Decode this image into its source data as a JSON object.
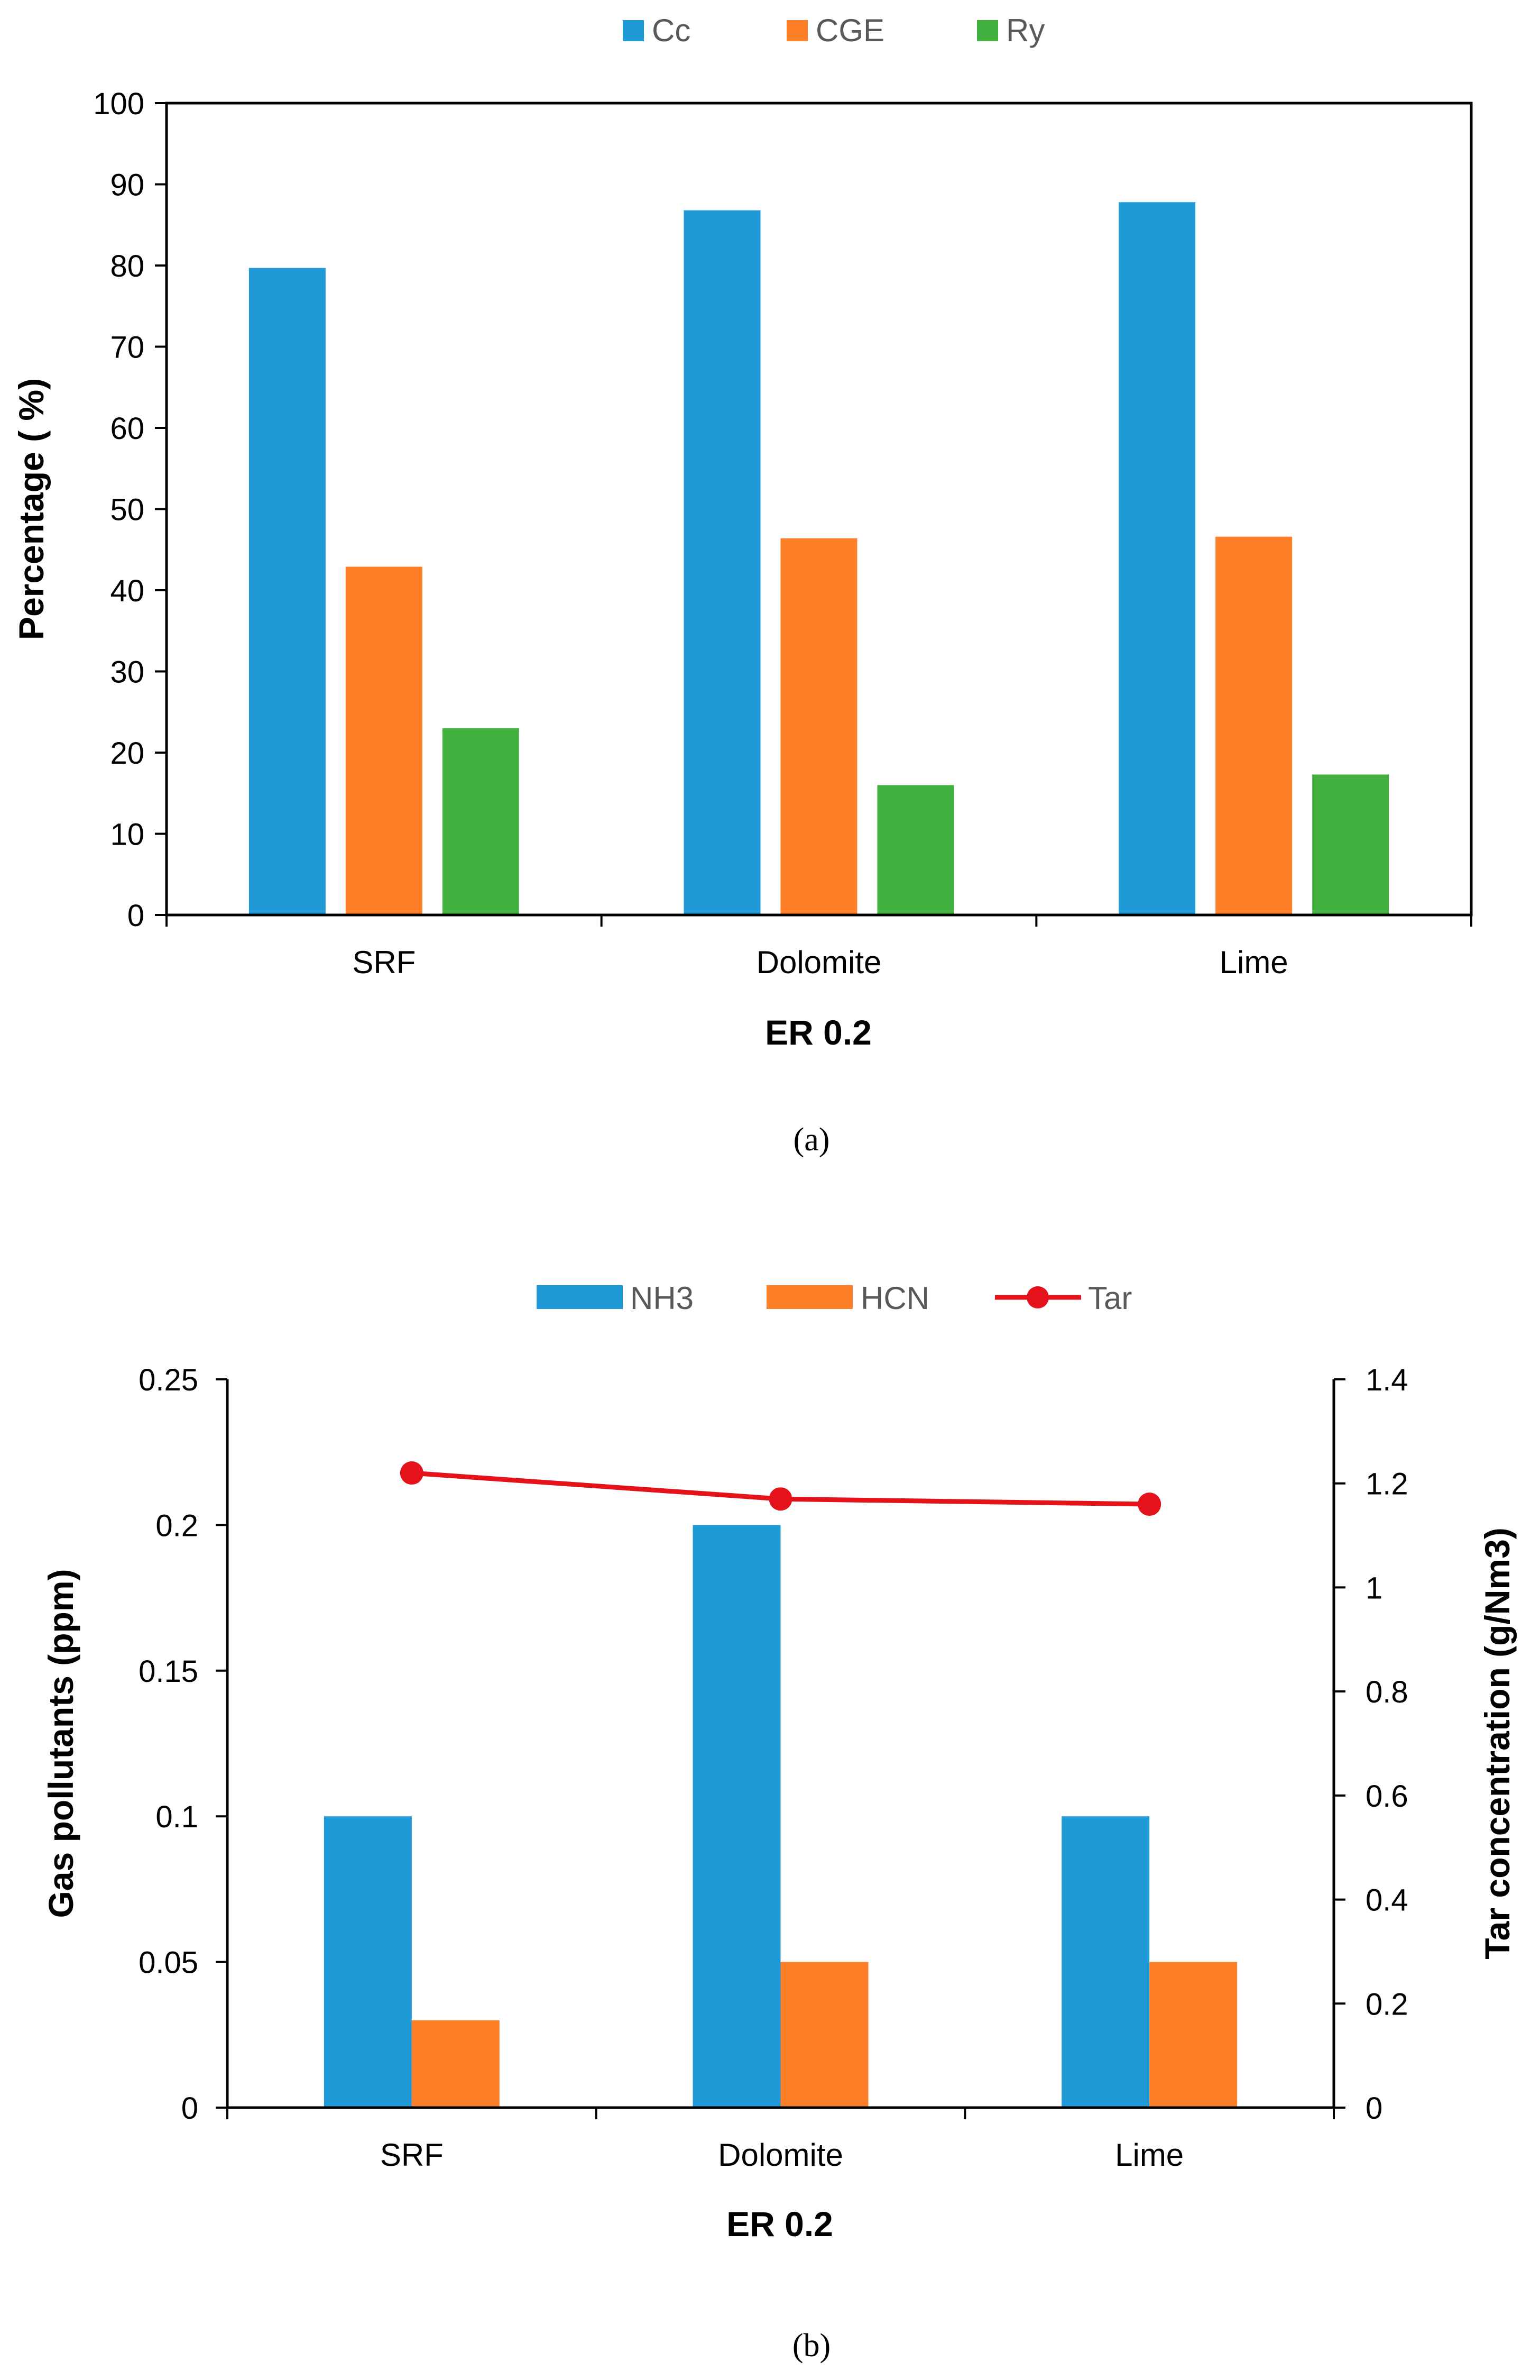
{
  "captions": {
    "a": "(a)",
    "b": "(b)"
  },
  "colors": {
    "blue": "#1f9ad6",
    "orange": "#fd7f28",
    "green": "#42b13f",
    "red": "#e3121b"
  },
  "chart_data": [
    {
      "type": "bar",
      "categories": [
        "SRF",
        "Dolomite",
        "Lime"
      ],
      "series": [
        {
          "name": "Cc",
          "values": [
            79.7,
            86.8,
            87.8
          ]
        },
        {
          "name": "CGE",
          "values": [
            42.9,
            46.4,
            46.6
          ]
        },
        {
          "name": "Ry",
          "values": [
            23.0,
            16.0,
            17.3
          ]
        }
      ],
      "xlabel": "ER 0.2",
      "ylabel": "Percentage ( %)",
      "ylim": [
        0,
        100
      ],
      "yticks": [
        "0",
        "10",
        "20",
        "30",
        "40",
        "50",
        "60",
        "70",
        "80",
        "90",
        "100"
      ],
      "legend_position": "top-center",
      "grid": false
    },
    {
      "type": "bar",
      "categories": [
        "SRF",
        "Dolomite",
        "Lime"
      ],
      "series": [
        {
          "name": "NH3",
          "values": [
            0.1,
            0.2,
            0.1
          ],
          "axis": "left"
        },
        {
          "name": "HCN",
          "values": [
            0.03,
            0.05,
            0.05
          ],
          "axis": "left"
        },
        {
          "name": "Tar",
          "type": "line",
          "values": [
            1.22,
            1.17,
            1.16
          ],
          "axis": "right"
        }
      ],
      "xlabel": "ER 0.2",
      "ylabel": "Gas pollutants (ppm)",
      "ylabel_right": "Tar concentration (g/Nm3)",
      "ylim": [
        0,
        0.25
      ],
      "ylim_right": [
        0,
        1.4
      ],
      "yticks": [
        "0",
        "0.05",
        "0.1",
        "0.15",
        "0.2",
        "0.25"
      ],
      "yticks_right": [
        "0",
        "0.2",
        "0.4",
        "0.6",
        "0.8",
        "1",
        "1.2",
        "1.4"
      ],
      "legend_position": "top-center",
      "grid": false
    }
  ]
}
